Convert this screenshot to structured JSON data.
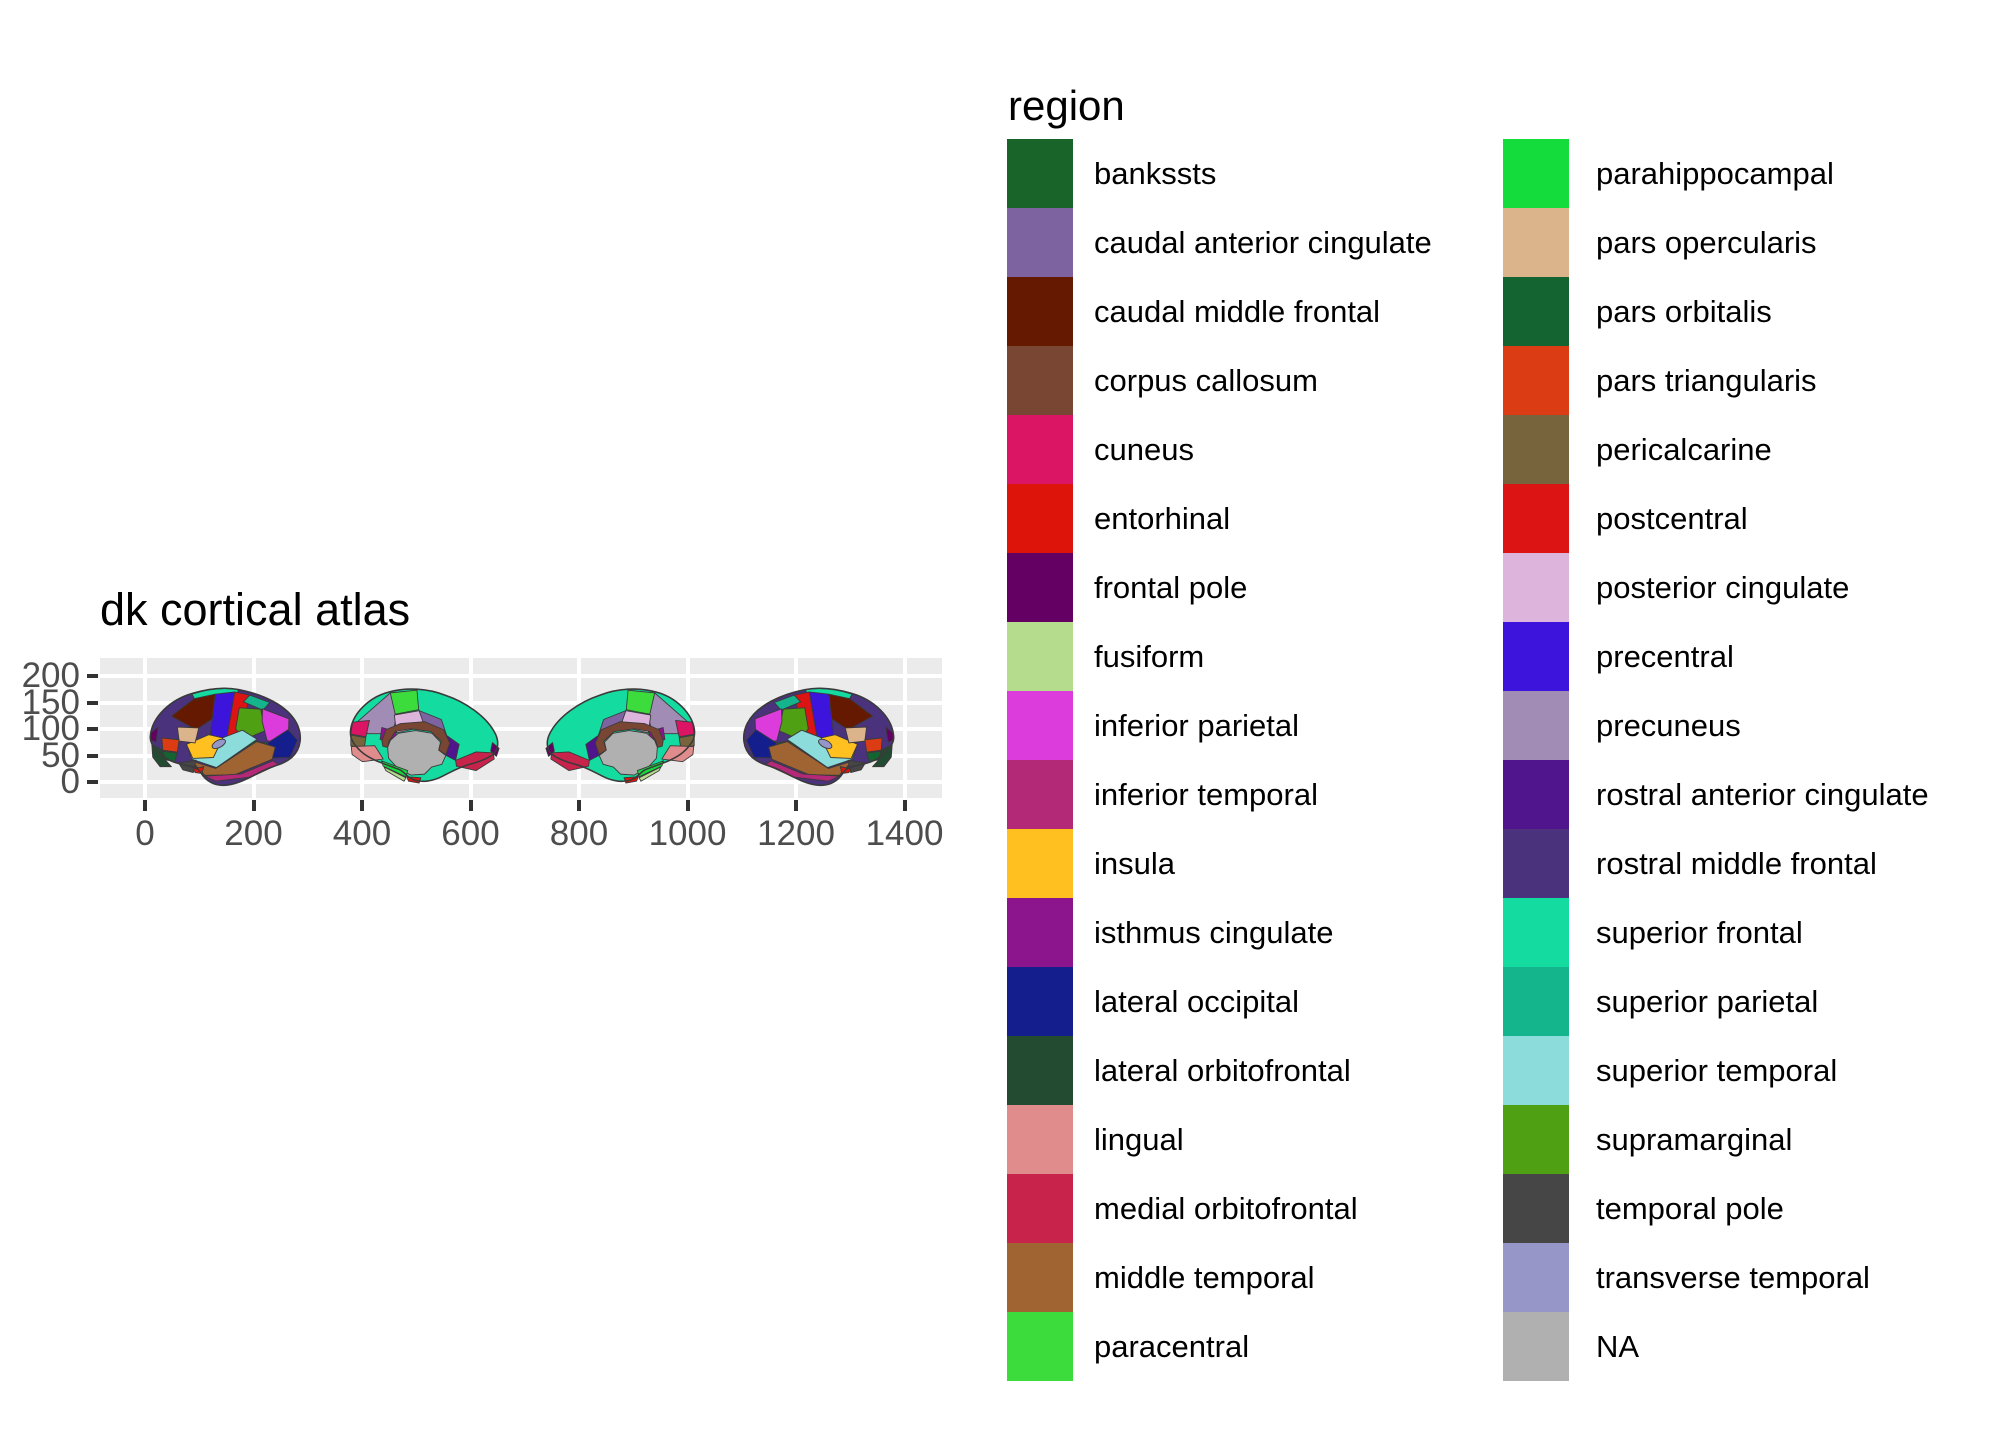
{
  "title": "dk cortical atlas",
  "legend": {
    "title": "region",
    "columns": [
      [
        "bankssts",
        "caudal anterior cingulate",
        "caudal middle frontal",
        "corpus callosum",
        "cuneus",
        "entorhinal",
        "frontal pole",
        "fusiform",
        "inferior parietal",
        "inferior temporal",
        "insula",
        "isthmus cingulate",
        "lateral occipital",
        "lateral orbitofrontal",
        "lingual",
        "medial orbitofrontal",
        "middle temporal",
        "paracentral"
      ],
      [
        "parahippocampal",
        "pars opercularis",
        "pars orbitalis",
        "pars triangularis",
        "pericalcarine",
        "postcentral",
        "posterior cingulate",
        "precentral",
        "precuneus",
        "rostral anterior cingulate",
        "rostral middle frontal",
        "superior frontal",
        "superior parietal",
        "superior temporal",
        "supramarginal",
        "temporal pole",
        "transverse temporal",
        "NA"
      ]
    ]
  },
  "chart_data": {
    "type": "polygon-atlas",
    "title": "dk cortical atlas",
    "description": "Desikan-Killiany cortical brain atlas plotted as four hemisphere views (left lateral, left medial, right medial, right lateral) with regions filled by color, legend on the right.",
    "views": [
      "left lateral",
      "left medial",
      "right medial",
      "right lateral"
    ],
    "x_ticks": [
      0,
      200,
      400,
      600,
      800,
      1000,
      1200,
      1400
    ],
    "y_ticks": [
      0,
      50,
      100,
      150,
      200
    ],
    "x_range": [
      -80,
      1470
    ],
    "y_range": [
      -30,
      230
    ],
    "grid": "major only, white on gray panel",
    "panel_bg": "#EBEBEB",
    "gridline_color": "#FFFFFF",
    "axis_text_color": "#4D4D4D",
    "legend_position": "right",
    "regions": [
      {
        "label": "bankssts",
        "color": "#196428"
      },
      {
        "label": "caudal anterior cingulate",
        "color": "#7D64A0"
      },
      {
        "label": "caudal middle frontal",
        "color": "#641900"
      },
      {
        "label": "corpus callosum",
        "color": "#784632"
      },
      {
        "label": "cuneus",
        "color": "#DC1464"
      },
      {
        "label": "entorhinal",
        "color": "#DC140A"
      },
      {
        "label": "frontal pole",
        "color": "#640064"
      },
      {
        "label": "fusiform",
        "color": "#B4DC8C"
      },
      {
        "label": "inferior parietal",
        "color": "#DC3CDC"
      },
      {
        "label": "inferior temporal",
        "color": "#B42878"
      },
      {
        "label": "insula",
        "color": "#FFC020"
      },
      {
        "label": "isthmus cingulate",
        "color": "#8C148C"
      },
      {
        "label": "lateral occipital",
        "color": "#141E8C"
      },
      {
        "label": "lateral orbitofrontal",
        "color": "#234B32"
      },
      {
        "label": "lingual",
        "color": "#E18C8C"
      },
      {
        "label": "medial orbitofrontal",
        "color": "#C8234B"
      },
      {
        "label": "middle temporal",
        "color": "#A06432"
      },
      {
        "label": "paracentral",
        "color": "#3CDC3C"
      },
      {
        "label": "parahippocampal",
        "color": "#14DC3C"
      },
      {
        "label": "pars opercularis",
        "color": "#DCB48C"
      },
      {
        "label": "pars orbitalis",
        "color": "#146432"
      },
      {
        "label": "pars triangularis",
        "color": "#DC3C14"
      },
      {
        "label": "pericalcarine",
        "color": "#78643C"
      },
      {
        "label": "postcentral",
        "color": "#DC1414"
      },
      {
        "label": "posterior cingulate",
        "color": "#DCB4DC"
      },
      {
        "label": "precentral",
        "color": "#3C14DC"
      },
      {
        "label": "precuneus",
        "color": "#A08CB4"
      },
      {
        "label": "rostral anterior cingulate",
        "color": "#50148C"
      },
      {
        "label": "rostral middle frontal",
        "color": "#4B327D"
      },
      {
        "label": "superior frontal",
        "color": "#14DCA0"
      },
      {
        "label": "superior parietal",
        "color": "#14B48C"
      },
      {
        "label": "superior temporal",
        "color": "#8CDCDC"
      },
      {
        "label": "supramarginal",
        "color": "#50A014"
      },
      {
        "label": "temporal pole",
        "color": "#464646"
      },
      {
        "label": "transverse temporal",
        "color": "#9696C8"
      },
      {
        "label": "NA",
        "color": "#B0B0B0"
      }
    ]
  }
}
